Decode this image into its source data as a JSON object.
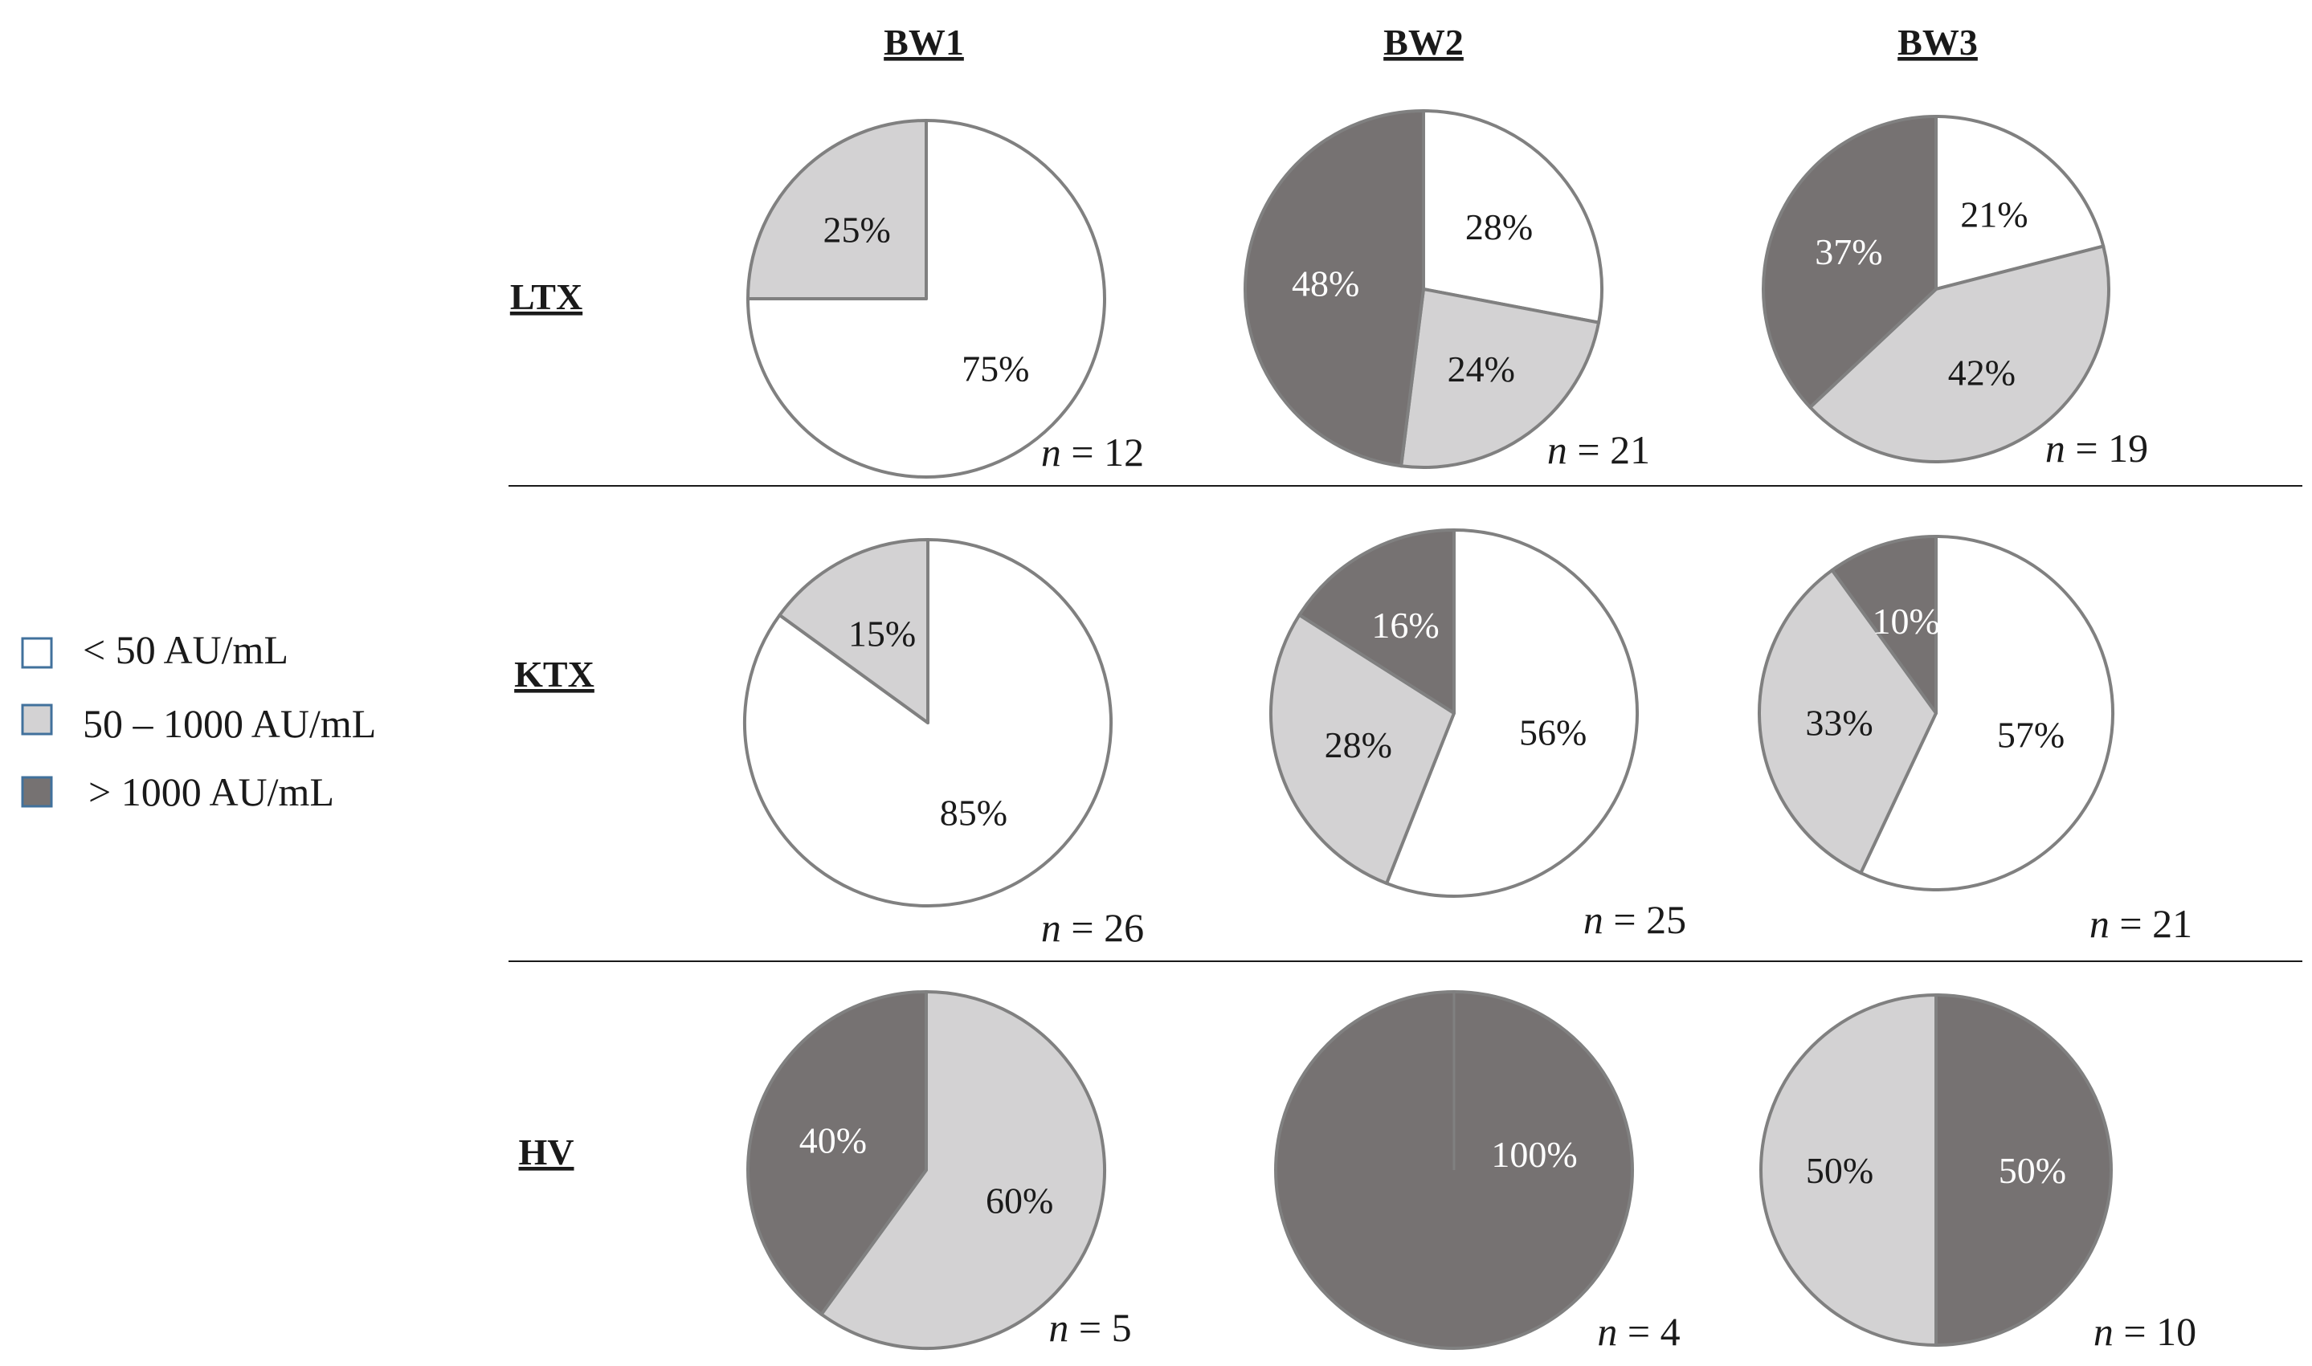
{
  "colors": {
    "low": "#ffffff",
    "mid": "#d3d2d3",
    "high": "#767272",
    "stroke": "#808080",
    "legend_stroke": "#41719c",
    "text_dark": "#1a1a1a",
    "text_light": "#ffffff"
  },
  "legend": [
    {
      "label": "< 50 AU/mL",
      "key": "low"
    },
    {
      "label": "50 – 1000 AU/mL",
      "key": "mid"
    },
    {
      "label": "> 1000 AU/mL",
      "key": "high"
    }
  ],
  "chart_data": {
    "type": "pie",
    "columns": [
      "BW1",
      "BW2",
      "BW3"
    ],
    "rows": [
      "LTX",
      "KTX",
      "HV"
    ],
    "categories": [
      "< 50 AU/mL",
      "50 – 1000 AU/mL",
      "> 1000 AU/mL"
    ],
    "pies": [
      {
        "row": "LTX",
        "col": "BW1",
        "n_label": "= 12",
        "slices": [
          {
            "category": "< 50 AU/mL",
            "value": 75,
            "label": "75%"
          },
          {
            "category": "50 – 1000 AU/mL",
            "value": 25,
            "label": "25%"
          }
        ]
      },
      {
        "row": "LTX",
        "col": "BW2",
        "n_label": "= 21",
        "slices": [
          {
            "category": "< 50 AU/mL",
            "value": 28,
            "label": "28%"
          },
          {
            "category": "50 – 1000 AU/mL",
            "value": 24,
            "label": "24%"
          },
          {
            "category": "> 1000 AU/mL",
            "value": 48,
            "label": "48%"
          }
        ]
      },
      {
        "row": "LTX",
        "col": "BW3",
        "n_label": "= 19",
        "slices": [
          {
            "category": "< 50 AU/mL",
            "value": 21,
            "label": "21%"
          },
          {
            "category": "50 – 1000 AU/mL",
            "value": 42,
            "label": "42%"
          },
          {
            "category": "> 1000 AU/mL",
            "value": 37,
            "label": "37%"
          }
        ]
      },
      {
        "row": "KTX",
        "col": "BW1",
        "n_label": "= 26",
        "slices": [
          {
            "category": "< 50 AU/mL",
            "value": 85,
            "label": "85%"
          },
          {
            "category": "50 – 1000 AU/mL",
            "value": 15,
            "label": "15%"
          }
        ]
      },
      {
        "row": "KTX",
        "col": "BW2",
        "n_label": "= 25",
        "slices": [
          {
            "category": "< 50 AU/mL",
            "value": 56,
            "label": "56%"
          },
          {
            "category": "50 – 1000 AU/mL",
            "value": 28,
            "label": "28%"
          },
          {
            "category": "> 1000 AU/mL",
            "value": 16,
            "label": "16%"
          }
        ]
      },
      {
        "row": "KTX",
        "col": "BW3",
        "n_label": "= 21",
        "slices": [
          {
            "category": "< 50 AU/mL",
            "value": 57,
            "label": "57%"
          },
          {
            "category": "50 – 1000 AU/mL",
            "value": 33,
            "label": "33%"
          },
          {
            "category": "> 1000 AU/mL",
            "value": 10,
            "label": "10%"
          }
        ]
      },
      {
        "row": "HV",
        "col": "BW1",
        "n_label": "= 5",
        "slices": [
          {
            "category": "50 – 1000 AU/mL",
            "value": 60,
            "label": "60%"
          },
          {
            "category": "> 1000 AU/mL",
            "value": 40,
            "label": "40%"
          }
        ]
      },
      {
        "row": "HV",
        "col": "BW2",
        "n_label": "= 4",
        "slices": [
          {
            "category": "> 1000 AU/mL",
            "value": 100,
            "label": "100%"
          }
        ]
      },
      {
        "row": "HV",
        "col": "BW3",
        "n_label": "= 10",
        "slices": [
          {
            "category": "> 1000 AU/mL",
            "value": 50,
            "label": "50%"
          },
          {
            "category": "50 – 1000 AU/mL",
            "value": 50,
            "label": "50%"
          }
        ]
      }
    ]
  }
}
